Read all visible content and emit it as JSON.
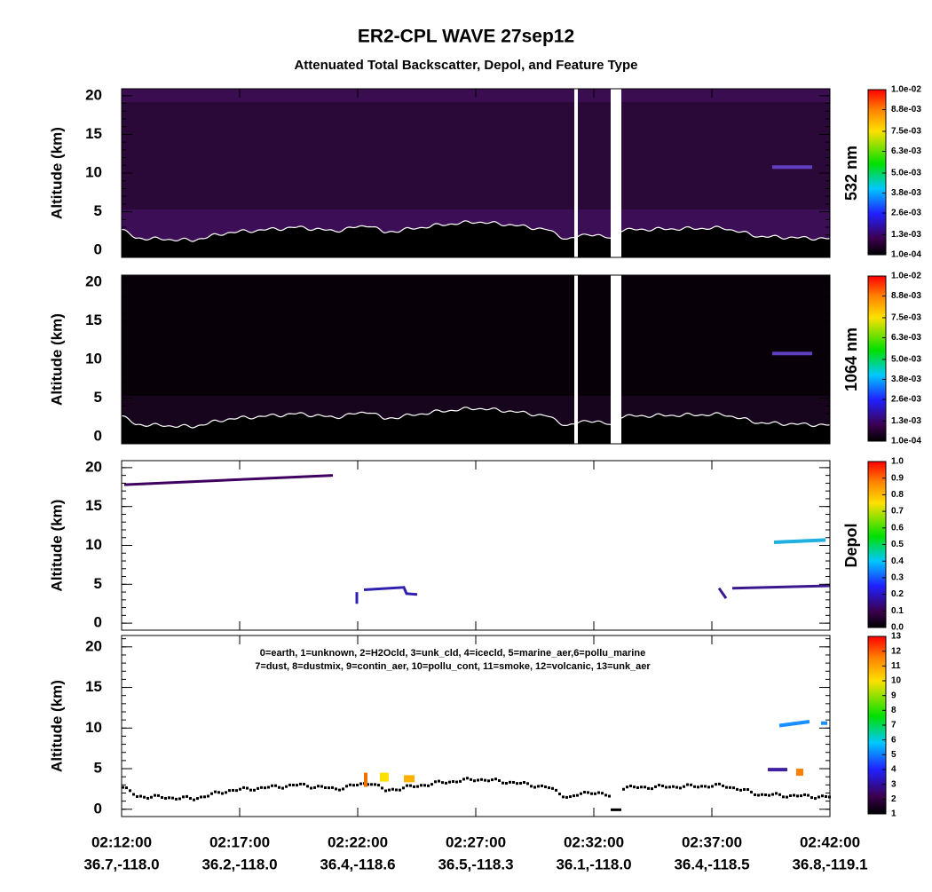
{
  "header": {
    "title": "ER2-CPL WAVE 27sep12",
    "subtitle": "Attenuated Total Backscatter, Depol, and Feature Type"
  },
  "x_axis": {
    "times": [
      "02:12:00",
      "02:17:00",
      "02:22:00",
      "02:27:00",
      "02:32:00",
      "02:37:00",
      "02:42:00"
    ],
    "coords": [
      "36.7,-118.0",
      "36.2,-118.0",
      "36.4,-118.6",
      "36.5,-118.3",
      "36.1,-118.0",
      "36.4,-118.5",
      "36.8,-119.1"
    ]
  },
  "chart_data": [
    {
      "type": "curtain",
      "ylabel": "Altitude (km)",
      "ylim": [
        -0.9,
        20.9
      ],
      "yticks": [
        0,
        5,
        10,
        15,
        20
      ],
      "colorbar": {
        "label": "532 nm",
        "lim": [
          0.0001,
          0.01
        ],
        "ticks": [
          {
            "value": 0.0001,
            "label": "1.0e-04"
          },
          {
            "value": 0.0013,
            "label": "1.3e-03"
          },
          {
            "value": 0.0026,
            "label": "2.6e-03"
          },
          {
            "value": 0.0038,
            "label": "3.8e-03"
          },
          {
            "value": 0.005,
            "label": "5.0e-03"
          },
          {
            "value": 0.0063,
            "label": "6.3e-03"
          },
          {
            "value": 0.0075,
            "label": "7.5e-03"
          },
          {
            "value": 0.0088,
            "label": "8.8e-03"
          },
          {
            "value": 0.01,
            "label": "1.0e-02"
          }
        ]
      }
    },
    {
      "type": "curtain",
      "ylabel": "Altitude (km)",
      "ylim": [
        -0.9,
        20.9
      ],
      "yticks": [
        0,
        5,
        10,
        15,
        20
      ],
      "colorbar": {
        "label": "1064 nm",
        "lim": [
          0.0001,
          0.01
        ],
        "ticks": [
          {
            "value": 0.0001,
            "label": "1.0e-04"
          },
          {
            "value": 0.0013,
            "label": "1.3e-03"
          },
          {
            "value": 0.0026,
            "label": "2.6e-03"
          },
          {
            "value": 0.0038,
            "label": "3.8e-03"
          },
          {
            "value": 0.005,
            "label": "5.0e-03"
          },
          {
            "value": 0.0063,
            "label": "6.3e-03"
          },
          {
            "value": 0.0075,
            "label": "7.5e-03"
          },
          {
            "value": 0.0088,
            "label": "8.8e-03"
          },
          {
            "value": 0.01,
            "label": "1.0e-02"
          }
        ]
      }
    },
    {
      "type": "depol",
      "ylabel": "Altitude (km)",
      "ylim": [
        -0.9,
        20.9
      ],
      "yticks": [
        0,
        5,
        10,
        15,
        20
      ],
      "colorbar": {
        "label": "Depol",
        "lim": [
          0,
          1
        ],
        "ticks": [
          {
            "value": 0,
            "label": "0.0"
          },
          0.1,
          0.2,
          0.3,
          0.4,
          0.5,
          0.6,
          0.7,
          0.8,
          0.9,
          {
            "value": 1,
            "label": "1.0"
          }
        ]
      }
    },
    {
      "type": "feature",
      "ylabel": "Altitude (km)",
      "ylim": [
        -0.9,
        21.4
      ],
      "yticks": [
        0,
        5,
        10,
        15,
        20
      ],
      "annotations": [
        "0=earth, 1=unknown, 2=H2Ocld, 3=unk_cld, 4=icecld, 5=marine_aer,6=pollu_marine",
        "7=dust, 8=dustmix, 9=contin_aer, 10=pollu_cont, 11=smoke, 12=volcanic, 13=unk_aer"
      ],
      "colorbar": {
        "label": null,
        "lim": [
          1,
          13
        ],
        "ticks": [
          1,
          2,
          3,
          4,
          5,
          6,
          7,
          8,
          9,
          10,
          11,
          12,
          13
        ]
      }
    }
  ]
}
